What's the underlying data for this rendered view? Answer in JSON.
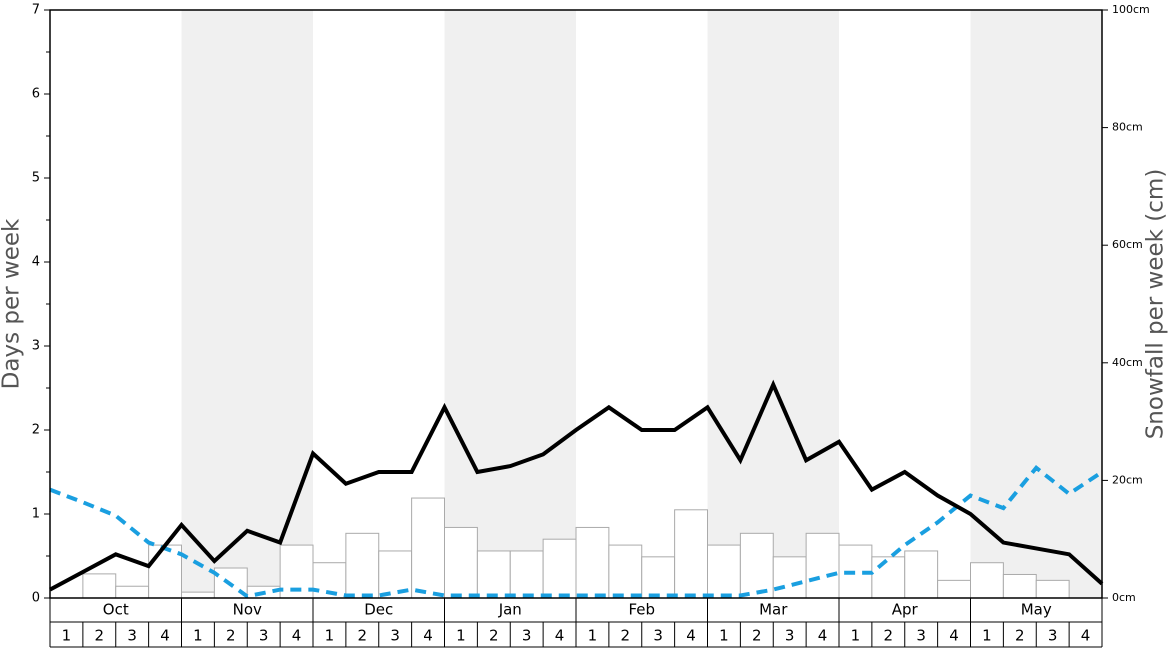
{
  "chart_data": {
    "type": "bar",
    "y_label": "Days per week",
    "y2_label": "Snowfall per week (cm)",
    "months": [
      "Oct",
      "Nov",
      "Dec",
      "Jan",
      "Feb",
      "Mar",
      "Apr",
      "May"
    ],
    "weeks": [
      "1",
      "2",
      "3",
      "4"
    ],
    "shaded_months": [
      1,
      3,
      5,
      7
    ],
    "ylim": [
      0,
      7
    ],
    "yticks": [
      0,
      1,
      2,
      3,
      4,
      5,
      6,
      7
    ],
    "yminorticks": [
      0.5,
      1.5,
      2.5,
      3.5,
      4.5,
      5.5,
      6.5
    ],
    "y2lim": [
      0,
      100
    ],
    "y2ticks": [
      {
        "value": 0,
        "label": "0cm"
      },
      {
        "value": 20,
        "label": "20cm"
      },
      {
        "value": 40,
        "label": "40cm"
      },
      {
        "value": 60,
        "label": "60cm"
      },
      {
        "value": 80,
        "label": "80cm"
      },
      {
        "value": 100,
        "label": "100cm"
      }
    ],
    "series": [
      {
        "type": "bar",
        "axis": "y2",
        "color": "#ffffff",
        "values": [
          0,
          4.1,
          2,
          9,
          1,
          5.1,
          2,
          9,
          6,
          11,
          8,
          17,
          12,
          8,
          8,
          10,
          12,
          9,
          7,
          15,
          9,
          11,
          7,
          11,
          9,
          7,
          8,
          3,
          6,
          4,
          3,
          0
        ]
      },
      {
        "type": "line",
        "color": "#1a9fe0",
        "dashed": true,
        "values": [
          1.29,
          1.14,
          0.98,
          0.66,
          0.52,
          0.3,
          0.02,
          0.1,
          0.1,
          0.03,
          0.03,
          0.1,
          0.03,
          0.03,
          0.03,
          0.03,
          0.03,
          0.03,
          0.03,
          0.03,
          0.03,
          0.03,
          0.1,
          0.2,
          0.3,
          0.3,
          0.63,
          0.9,
          1.22,
          1.07,
          1.55,
          1.24,
          1.5
        ]
      },
      {
        "type": "line",
        "color": "#000000",
        "dashed": false,
        "values": [
          0.1,
          0.31,
          0.52,
          0.38,
          0.87,
          0.44,
          0.8,
          0.66,
          1.72,
          1.36,
          1.5,
          1.5,
          2.27,
          1.5,
          1.57,
          1.71,
          2.0,
          2.27,
          2.0,
          2.0,
          2.27,
          1.64,
          2.54,
          1.64,
          1.86,
          1.29,
          1.5,
          1.22,
          1.0,
          0.66,
          0.59,
          0.52,
          0.17
        ]
      }
    ]
  }
}
